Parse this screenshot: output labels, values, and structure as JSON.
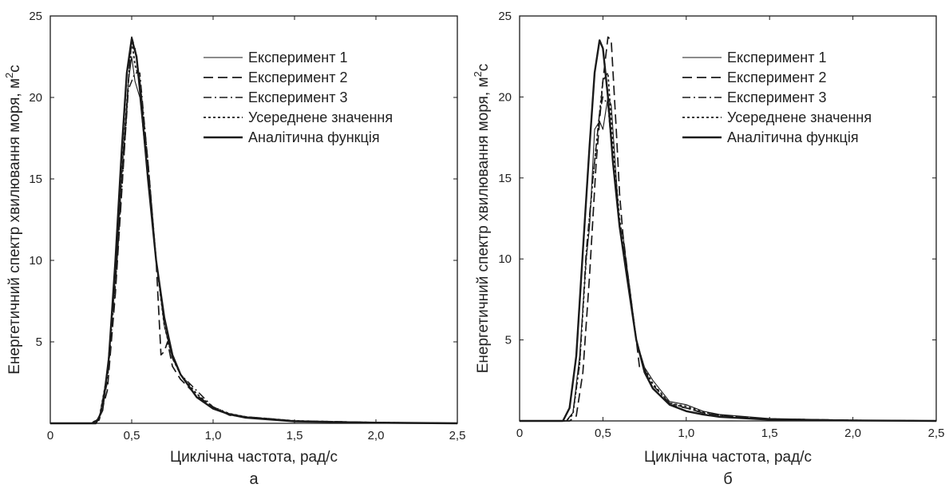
{
  "colors": {
    "line": "#1a1a1a",
    "axis": "#1a1a1a",
    "background": "#ffffff"
  },
  "chart_data": [
    {
      "type": "line",
      "panel_label": "а",
      "xlabel": "Циклічна частота, рад/с",
      "ylabel": "Енергетичний спектр хвилювання моря, м",
      "ylabel_sup": "2",
      "ylabel_suffix": "с",
      "xlim": [
        0,
        2.5
      ],
      "ylim": [
        0,
        25
      ],
      "x_ticks": [
        0,
        0.5,
        1.0,
        1.5,
        2.0,
        2.5
      ],
      "x_tick_labels": [
        "0",
        "0,5",
        "1,0",
        "1,5",
        "2,0",
        "2,5"
      ],
      "y_ticks": [
        5,
        10,
        15,
        20,
        25
      ],
      "y_tick_labels": [
        "5",
        "10",
        "15",
        "20",
        "25"
      ],
      "legend_position": "top-right",
      "series": [
        {
          "name": "Експеримент 1",
          "style": "solid-thin",
          "x": [
            0,
            0.25,
            0.3,
            0.35,
            0.4,
            0.45,
            0.48,
            0.5,
            0.52,
            0.55,
            0.6,
            0.65,
            0.7,
            0.75,
            0.8,
            0.9,
            1.0,
            1.1,
            1.2,
            1.5,
            2.0,
            2.5
          ],
          "y": [
            0,
            0,
            0.3,
            3,
            9,
            17,
            21,
            22.5,
            21,
            20,
            15,
            10,
            6,
            4,
            3,
            1.6,
            0.9,
            0.6,
            0.4,
            0.15,
            0.05,
            0
          ]
        },
        {
          "name": "Експеримент 2",
          "style": "dashed",
          "x": [
            0,
            0.25,
            0.3,
            0.35,
            0.4,
            0.45,
            0.48,
            0.5,
            0.52,
            0.55,
            0.6,
            0.65,
            0.68,
            0.7,
            0.72,
            0.75,
            0.8,
            0.9,
            1.0,
            1.1,
            1.2,
            1.5,
            2.0,
            2.5
          ],
          "y": [
            0,
            0,
            0.2,
            2,
            8,
            16,
            21,
            23.7,
            23,
            21,
            16,
            10,
            4.2,
            4.4,
            5,
            3.5,
            2.7,
            1.7,
            1.0,
            0.5,
            0.4,
            0.15,
            0.05,
            0
          ]
        },
        {
          "name": "Експеримент 3",
          "style": "dashdot",
          "x": [
            0,
            0.25,
            0.3,
            0.35,
            0.4,
            0.45,
            0.48,
            0.5,
            0.52,
            0.55,
            0.6,
            0.65,
            0.7,
            0.75,
            0.8,
            0.9,
            1.0,
            1.05,
            1.1,
            1.2,
            1.5,
            2.0,
            2.5
          ],
          "y": [
            0,
            0,
            0.3,
            2.5,
            8.5,
            16,
            20.5,
            21,
            21.5,
            21.5,
            16,
            10,
            6.5,
            4,
            3,
            2,
            1.0,
            0.8,
            0.5,
            0.4,
            0.15,
            0.05,
            0
          ]
        },
        {
          "name": "Усереднене значення",
          "style": "dotted",
          "x": [
            0,
            0.25,
            0.3,
            0.35,
            0.4,
            0.45,
            0.48,
            0.5,
            0.52,
            0.55,
            0.6,
            0.65,
            0.7,
            0.75,
            0.8,
            0.9,
            1.0,
            1.1,
            1.2,
            1.5,
            2.0,
            2.5
          ],
          "y": [
            0,
            0,
            0.3,
            3,
            9,
            17,
            21,
            23.5,
            22,
            21,
            16,
            10,
            6,
            4,
            3,
            1.8,
            1.0,
            0.6,
            0.4,
            0.15,
            0.05,
            0
          ]
        },
        {
          "name": "Аналітична функція",
          "style": "solid-thick",
          "x": [
            0,
            0.28,
            0.32,
            0.36,
            0.4,
            0.44,
            0.47,
            0.5,
            0.53,
            0.56,
            0.6,
            0.65,
            0.7,
            0.75,
            0.8,
            0.9,
            1.0,
            1.1,
            1.2,
            1.5,
            2.0,
            2.5
          ],
          "y": [
            0,
            0,
            0.8,
            4,
            10,
            17,
            21.5,
            23.6,
            22.5,
            19.5,
            15,
            10,
            6.5,
            4.2,
            3,
            1.6,
            0.9,
            0.55,
            0.35,
            0.12,
            0.04,
            0
          ]
        }
      ]
    },
    {
      "type": "line",
      "panel_label": "б",
      "xlabel": "Циклічна частота, рад/с",
      "ylabel": "Енергетичний спектр хвилювання моря, м",
      "ylabel_sup": "2",
      "ylabel_suffix": "с",
      "xlim": [
        0,
        2.5
      ],
      "ylim": [
        0,
        25
      ],
      "x_ticks": [
        0,
        0.5,
        1.0,
        1.5,
        2.0,
        2.5
      ],
      "x_tick_labels": [
        "0",
        "0,5",
        "1,0",
        "1,5",
        "2,0",
        "2,5"
      ],
      "y_ticks": [
        5,
        10,
        15,
        20,
        25
      ],
      "y_tick_labels": [
        "5",
        "10",
        "15",
        "20",
        "25"
      ],
      "legend_position": "top-right",
      "series": [
        {
          "name": "Експеримент 1",
          "style": "solid-thin",
          "x": [
            0,
            0.28,
            0.32,
            0.36,
            0.4,
            0.42,
            0.45,
            0.48,
            0.5,
            0.53,
            0.55,
            0.58,
            0.6,
            0.62,
            0.65,
            0.7,
            0.75,
            0.8,
            0.9,
            1.0,
            1.1,
            1.2,
            1.5,
            2.0,
            2.5
          ],
          "y": [
            0,
            0,
            0.5,
            4,
            10,
            12,
            18,
            18.5,
            18,
            20,
            19.5,
            15,
            12,
            11.5,
            9,
            5,
            3.3,
            2.5,
            1.2,
            1.0,
            0.6,
            0.4,
            0.15,
            0.05,
            0
          ]
        },
        {
          "name": "Експеримент 2",
          "style": "dashed",
          "x": [
            0,
            0.3,
            0.34,
            0.38,
            0.42,
            0.46,
            0.5,
            0.53,
            0.55,
            0.58,
            0.6,
            0.62,
            0.65,
            0.7,
            0.72,
            0.75,
            0.8,
            0.9,
            1.0,
            1.1,
            1.2,
            1.5,
            2.0,
            2.5
          ],
          "y": [
            0,
            0,
            0.3,
            3,
            9,
            16,
            21,
            23.7,
            23.5,
            18,
            14,
            11.5,
            9,
            5,
            3.3,
            3.2,
            2.0,
            1.0,
            0.8,
            0.5,
            0.35,
            0.12,
            0.04,
            0
          ]
        },
        {
          "name": "Експеримент 3",
          "style": "dashdot",
          "x": [
            0,
            0.28,
            0.32,
            0.36,
            0.4,
            0.44,
            0.48,
            0.5,
            0.53,
            0.56,
            0.6,
            0.62,
            0.65,
            0.7,
            0.75,
            0.8,
            0.9,
            1.0,
            1.1,
            1.2,
            1.5,
            2.0,
            2.5
          ],
          "y": [
            0,
            0,
            0.5,
            3.5,
            10.5,
            15,
            19,
            20,
            19.5,
            16,
            12,
            11,
            9,
            5,
            3,
            2.2,
            1.1,
            0.8,
            0.5,
            0.35,
            0.12,
            0.04,
            0
          ]
        },
        {
          "name": "Усереднене значення",
          "style": "dotted",
          "x": [
            0,
            0.28,
            0.32,
            0.36,
            0.4,
            0.44,
            0.48,
            0.5,
            0.53,
            0.56,
            0.6,
            0.62,
            0.65,
            0.7,
            0.75,
            0.8,
            0.9,
            1.0,
            1.1,
            1.2,
            1.5,
            2.0,
            2.5
          ],
          "y": [
            0,
            0,
            0.4,
            3.5,
            10,
            15,
            19,
            21,
            21.5,
            17,
            12.5,
            11,
            9,
            5,
            3.2,
            2.3,
            1.1,
            0.9,
            0.55,
            0.35,
            0.12,
            0.04,
            0
          ]
        },
        {
          "name": "Аналітична функція",
          "style": "solid-thick",
          "x": [
            0,
            0.26,
            0.3,
            0.34,
            0.38,
            0.42,
            0.45,
            0.48,
            0.5,
            0.53,
            0.56,
            0.6,
            0.65,
            0.7,
            0.75,
            0.8,
            0.9,
            1.0,
            1.1,
            1.2,
            1.5,
            2.0,
            2.5
          ],
          "y": [
            0,
            0,
            0.8,
            4,
            10.5,
            17,
            21.5,
            23.5,
            23,
            20,
            16,
            12,
            8.5,
            5,
            3,
            2.0,
            1.0,
            0.6,
            0.4,
            0.25,
            0.08,
            0.03,
            0
          ]
        }
      ]
    }
  ]
}
